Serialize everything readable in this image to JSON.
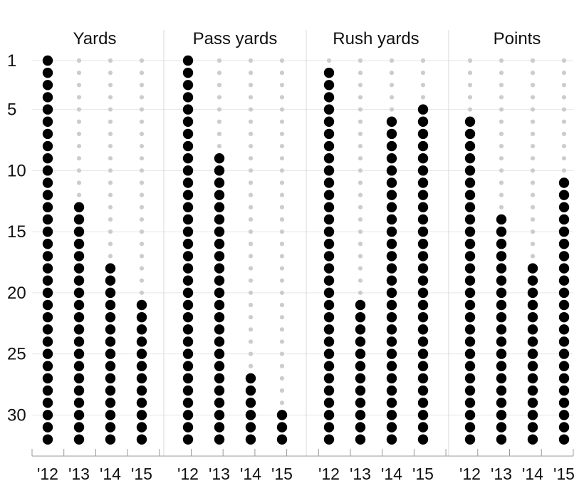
{
  "chart_data": {
    "type": "dot-rank",
    "panels": [
      {
        "title": "Yards",
        "values": [
          1,
          13,
          18,
          21
        ]
      },
      {
        "title": "Pass yards",
        "values": [
          1,
          9,
          27,
          30
        ]
      },
      {
        "title": "Rush yards",
        "values": [
          2,
          21,
          6,
          5
        ]
      },
      {
        "title": "Points",
        "values": [
          6,
          14,
          18,
          11
        ]
      }
    ],
    "categories": [
      "'12",
      "'13",
      "'14",
      "'15"
    ],
    "yticks": [
      1,
      5,
      10,
      15,
      20,
      25,
      30
    ],
    "ylim": [
      1,
      32
    ],
    "y_inverted": true,
    "grid": true,
    "colors": {
      "filled": "#000000",
      "empty": "#cccccc",
      "grid": "#e6e6e6",
      "axis": "#999999"
    }
  }
}
